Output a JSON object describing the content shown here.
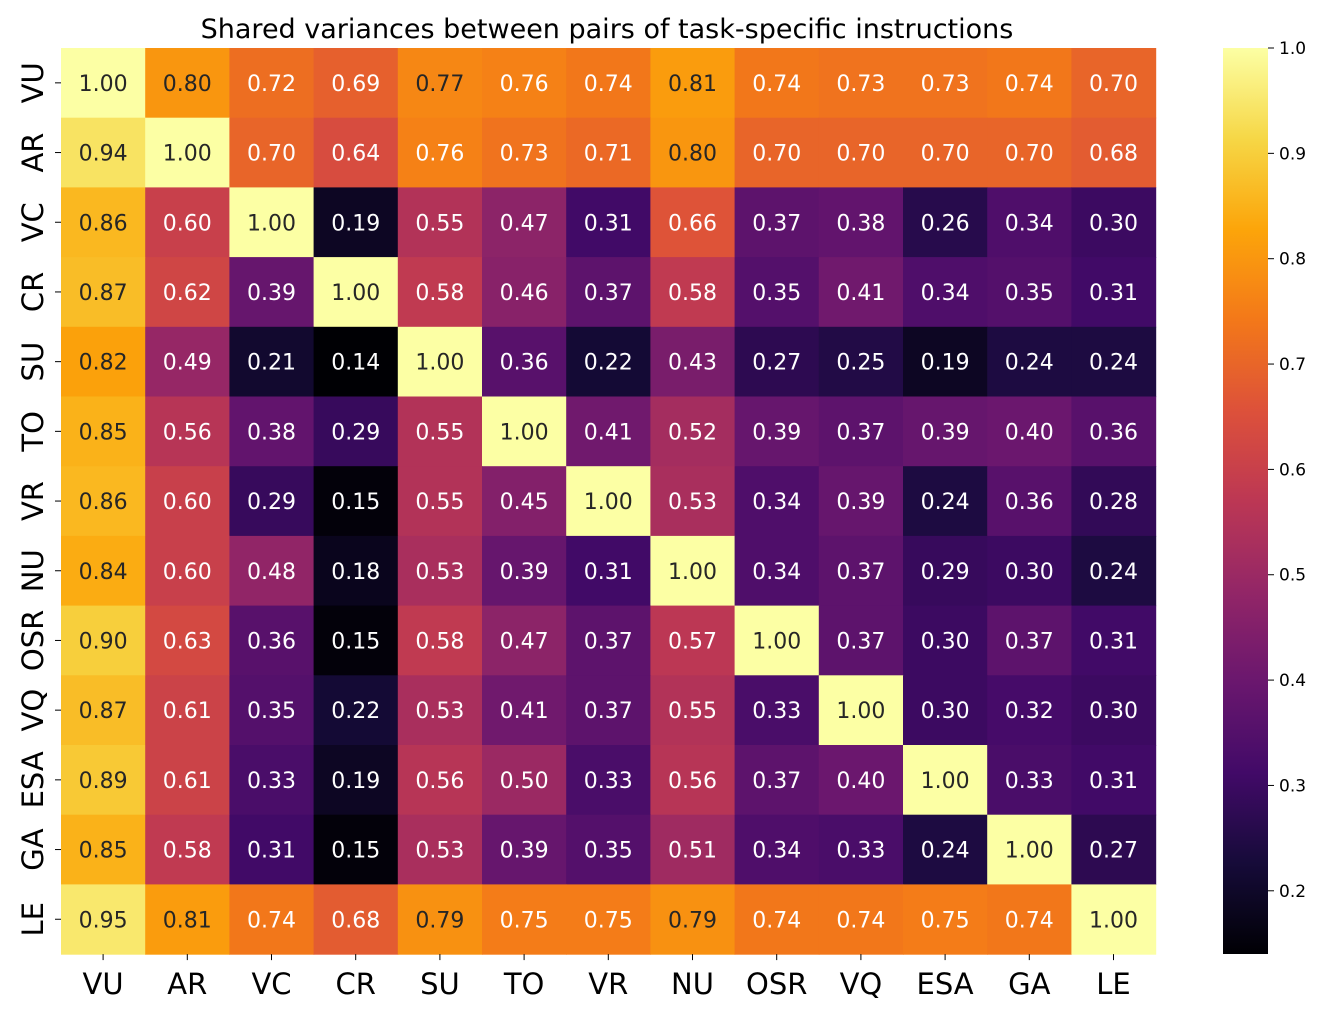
{
  "chart_data": {
    "type": "heatmap",
    "title": "Shared variances between pairs of task-specific instructions",
    "xlabel": "",
    "ylabel": "",
    "row_labels": [
      "VU",
      "AR",
      "VC",
      "CR",
      "SU",
      "TO",
      "VR",
      "NU",
      "OSR",
      "VQ",
      "ESA",
      "GA",
      "LE"
    ],
    "col_labels": [
      "VU",
      "AR",
      "VC",
      "CR",
      "SU",
      "TO",
      "VR",
      "NU",
      "OSR",
      "VQ",
      "ESA",
      "GA",
      "LE"
    ],
    "values": [
      [
        1.0,
        0.8,
        0.72,
        0.69,
        0.77,
        0.76,
        0.74,
        0.81,
        0.74,
        0.73,
        0.73,
        0.74,
        0.7
      ],
      [
        0.94,
        1.0,
        0.7,
        0.64,
        0.76,
        0.73,
        0.71,
        0.8,
        0.7,
        0.7,
        0.7,
        0.7,
        0.68
      ],
      [
        0.86,
        0.6,
        1.0,
        0.19,
        0.55,
        0.47,
        0.31,
        0.66,
        0.37,
        0.38,
        0.26,
        0.34,
        0.3
      ],
      [
        0.87,
        0.62,
        0.39,
        1.0,
        0.58,
        0.46,
        0.37,
        0.58,
        0.35,
        0.41,
        0.34,
        0.35,
        0.31
      ],
      [
        0.82,
        0.49,
        0.21,
        0.14,
        1.0,
        0.36,
        0.22,
        0.43,
        0.27,
        0.25,
        0.19,
        0.24,
        0.24
      ],
      [
        0.85,
        0.56,
        0.38,
        0.29,
        0.55,
        1.0,
        0.41,
        0.52,
        0.39,
        0.37,
        0.39,
        0.4,
        0.36
      ],
      [
        0.86,
        0.6,
        0.29,
        0.15,
        0.55,
        0.45,
        1.0,
        0.53,
        0.34,
        0.39,
        0.24,
        0.36,
        0.28
      ],
      [
        0.84,
        0.6,
        0.48,
        0.18,
        0.53,
        0.39,
        0.31,
        1.0,
        0.34,
        0.37,
        0.29,
        0.3,
        0.24
      ],
      [
        0.9,
        0.63,
        0.36,
        0.15,
        0.58,
        0.47,
        0.37,
        0.57,
        1.0,
        0.37,
        0.3,
        0.37,
        0.31
      ],
      [
        0.87,
        0.61,
        0.35,
        0.22,
        0.53,
        0.41,
        0.37,
        0.55,
        0.33,
        1.0,
        0.3,
        0.32,
        0.3
      ],
      [
        0.89,
        0.61,
        0.33,
        0.19,
        0.56,
        0.5,
        0.33,
        0.56,
        0.37,
        0.4,
        1.0,
        0.33,
        0.31
      ],
      [
        0.85,
        0.58,
        0.31,
        0.15,
        0.53,
        0.39,
        0.35,
        0.51,
        0.34,
        0.33,
        0.24,
        1.0,
        0.27
      ],
      [
        0.95,
        0.81,
        0.74,
        0.68,
        0.79,
        0.75,
        0.75,
        0.79,
        0.74,
        0.74,
        0.75,
        0.74,
        1.0
      ]
    ],
    "value_format": "0.00",
    "colormap": "inferno",
    "vmin": 0.14,
    "vmax": 1.0,
    "colorbar_ticks": [
      0.2,
      0.3,
      0.4,
      0.5,
      0.6,
      0.7,
      0.8,
      0.9,
      1.0
    ],
    "colorbar_tick_labels": [
      "0.2",
      "0.3",
      "0.4",
      "0.5",
      "0.6",
      "0.7",
      "0.8",
      "0.9",
      "1.0"
    ],
    "grid": false,
    "legend": "colorbar-right"
  }
}
